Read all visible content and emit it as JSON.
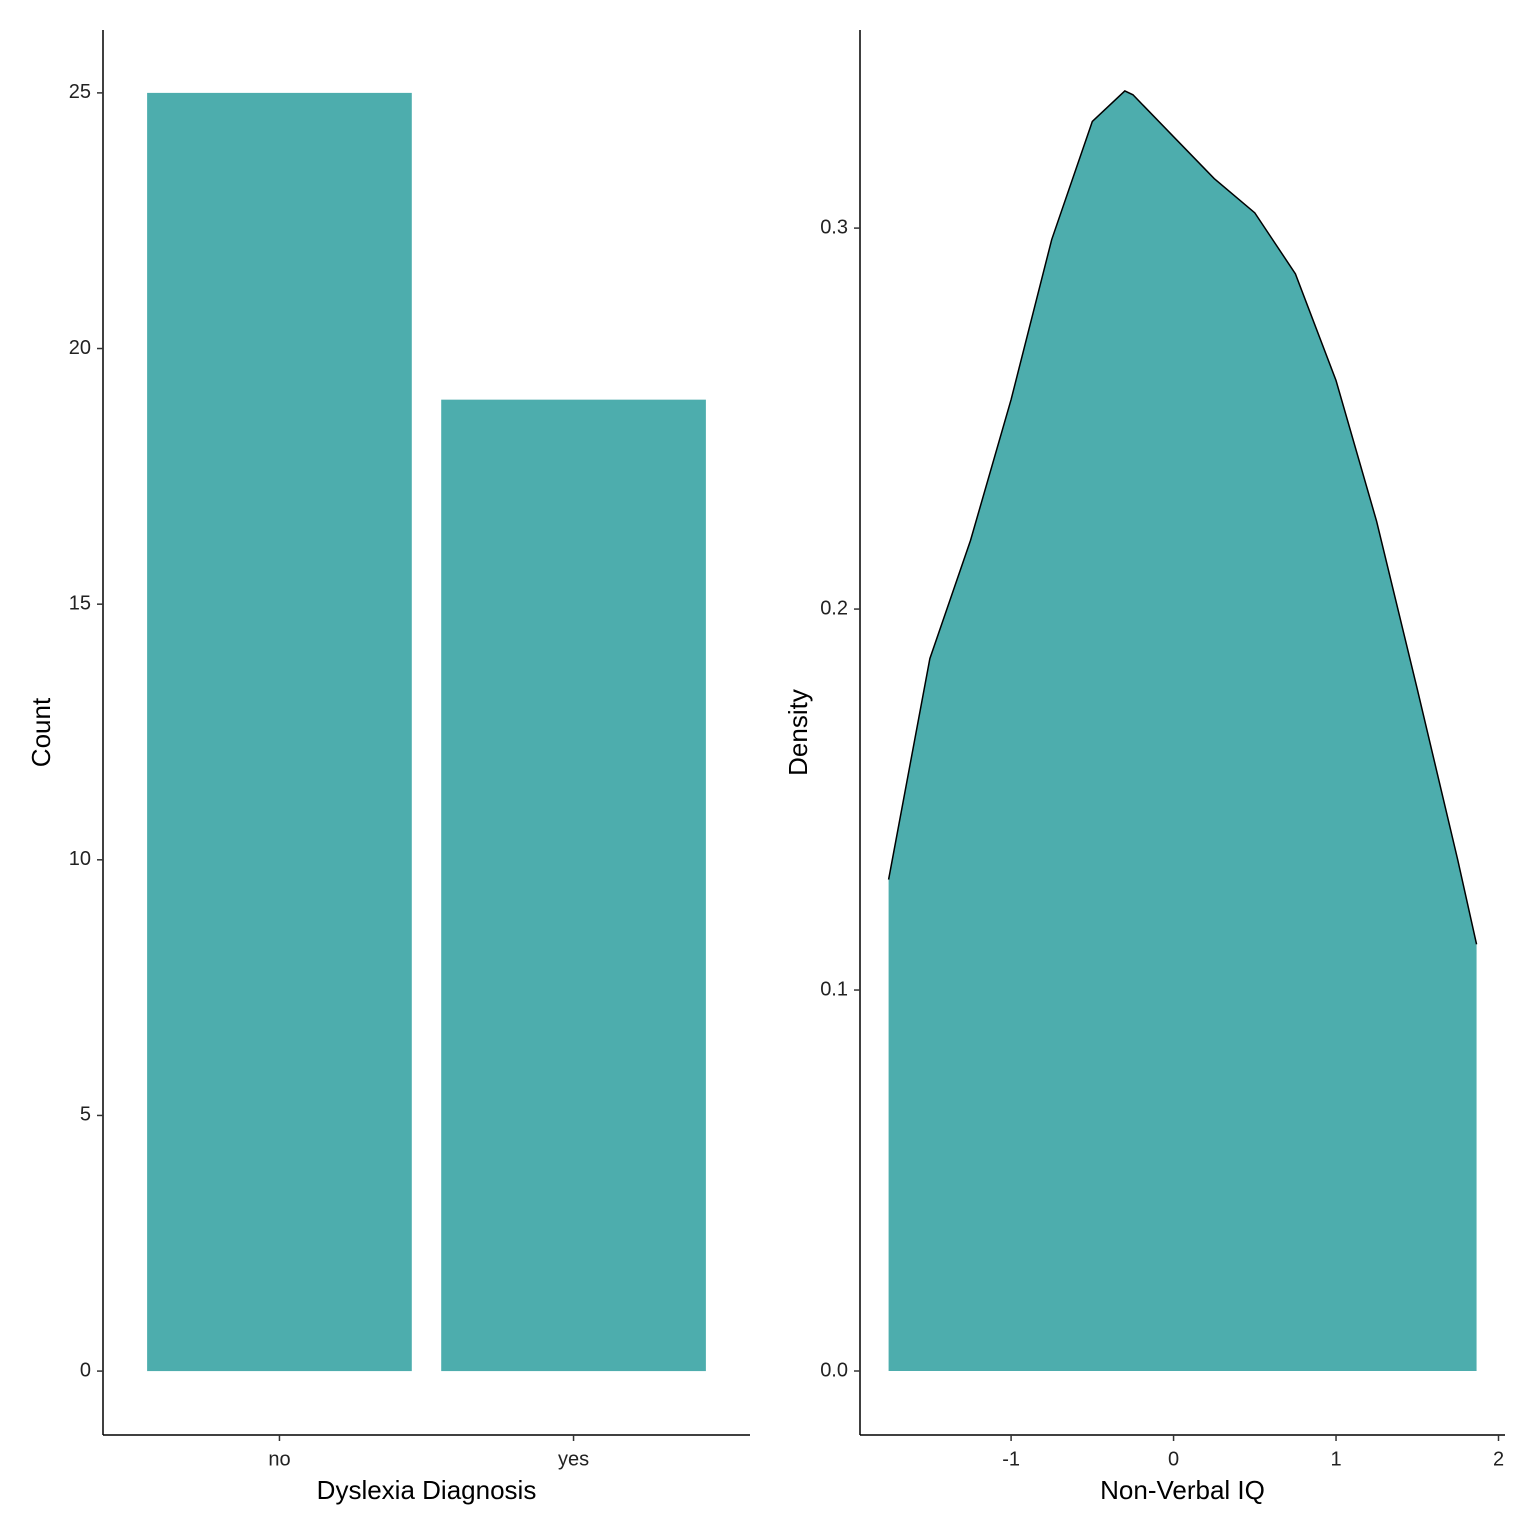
{
  "chart_data": [
    {
      "type": "bar",
      "x_label": "Dyslexia Diagnosis",
      "y_label": "Count",
      "categories": [
        "no",
        "yes"
      ],
      "values": [
        25,
        19
      ],
      "color": "#4DADAD",
      "ylim": [
        -1.25,
        26.23
      ],
      "yticks": [
        0,
        5,
        10,
        15,
        20,
        25
      ]
    },
    {
      "type": "area",
      "x_label": "Non-Verbal IQ",
      "y_label": "Density",
      "color": "#4DADAD",
      "line_color": "#000000",
      "x": [
        -1.754,
        -1.5,
        -1.25,
        -1.0,
        -0.75,
        -0.5,
        -0.3,
        -0.25,
        0,
        0.25,
        0.5,
        0.75,
        1.0,
        1.25,
        1.5,
        1.75,
        1.865
      ],
      "values": [
        0.129,
        0.187,
        0.218,
        0.255,
        0.297,
        0.328,
        0.336,
        0.335,
        0.324,
        0.313,
        0.304,
        0.288,
        0.26,
        0.223,
        0.179,
        0.134,
        0.112
      ],
      "xlim": [
        -1.93,
        2.04
      ],
      "xticks": [
        -1,
        0,
        1,
        2
      ],
      "ylim": [
        -0.0168,
        0.352
      ],
      "yticks": [
        {
          "value": 0,
          "label": "0.0"
        },
        0.1,
        0.2,
        0.3
      ]
    }
  ]
}
